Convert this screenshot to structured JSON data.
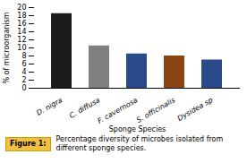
{
  "chart_data": {
    "type": "bar",
    "categories": [
      "D. nigra",
      "C. diffusa",
      "F. cavernosa",
      "S. officinalis",
      "Dysidea sp"
    ],
    "values": [
      18.5,
      10.5,
      8.5,
      8.0,
      7.0
    ],
    "colors": [
      "#1a1a1a",
      "#808080",
      "#2b4a8a",
      "#8b4513",
      "#2b4a8a"
    ],
    "xlabel": "Sponge Species",
    "ylabel": "% of microorganism",
    "ylim": [
      0,
      20
    ],
    "yticks": [
      0,
      2,
      4,
      6,
      8,
      10,
      12,
      14,
      16,
      18,
      20
    ],
    "annotations": [
      "Figure 1:",
      "Percentage diversity of microbes isolated from\ndifferent sponge species."
    ]
  }
}
